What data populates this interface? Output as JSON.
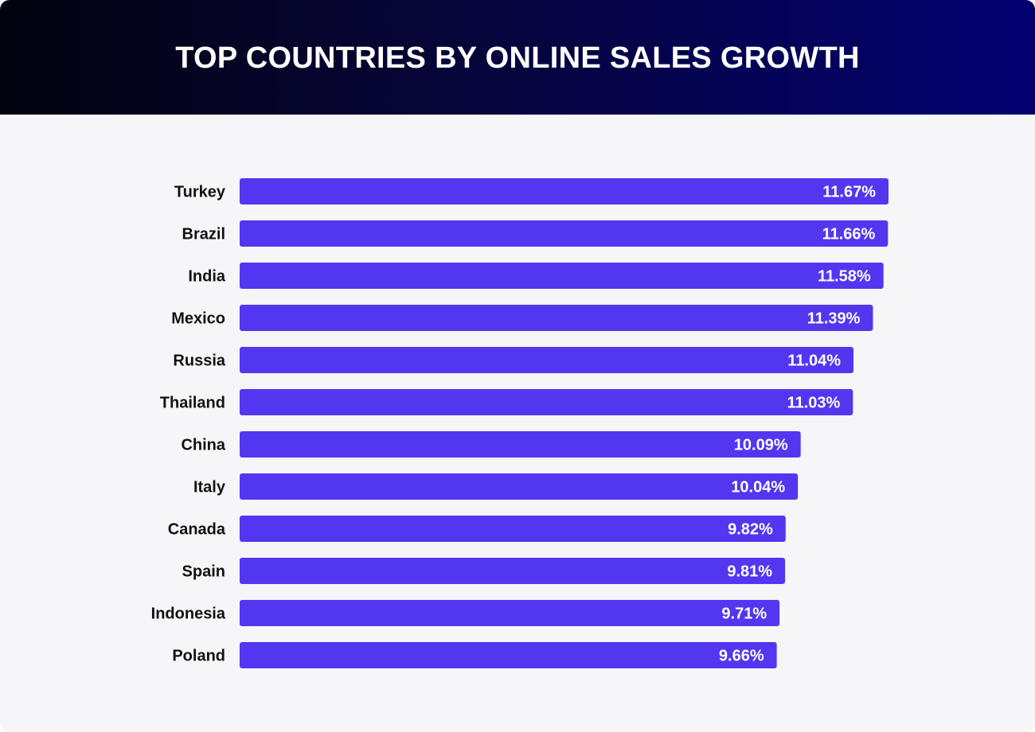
{
  "chart_data": {
    "type": "bar",
    "orientation": "horizontal",
    "title": "TOP COUNTRIES BY ONLINE SALES GROWTH",
    "categories": [
      "Turkey",
      "Brazil",
      "India",
      "Mexico",
      "Russia",
      "Thailand",
      "China",
      "Italy",
      "Canada",
      "Spain",
      "Indonesia",
      "Poland"
    ],
    "values": [
      11.67,
      11.66,
      11.58,
      11.39,
      11.04,
      11.03,
      10.09,
      10.04,
      9.82,
      9.81,
      9.71,
      9.66
    ],
    "value_labels": [
      "11.67%",
      "11.66%",
      "11.58%",
      "11.39%",
      "11.04%",
      "11.03%",
      "10.09%",
      "10.04%",
      "9.82%",
      "9.81%",
      "9.71%",
      "9.66%"
    ],
    "xlabel": "",
    "ylabel": "",
    "xlim": [
      0,
      11.67
    ],
    "grid": false,
    "bar_color": "#5236f0"
  }
}
